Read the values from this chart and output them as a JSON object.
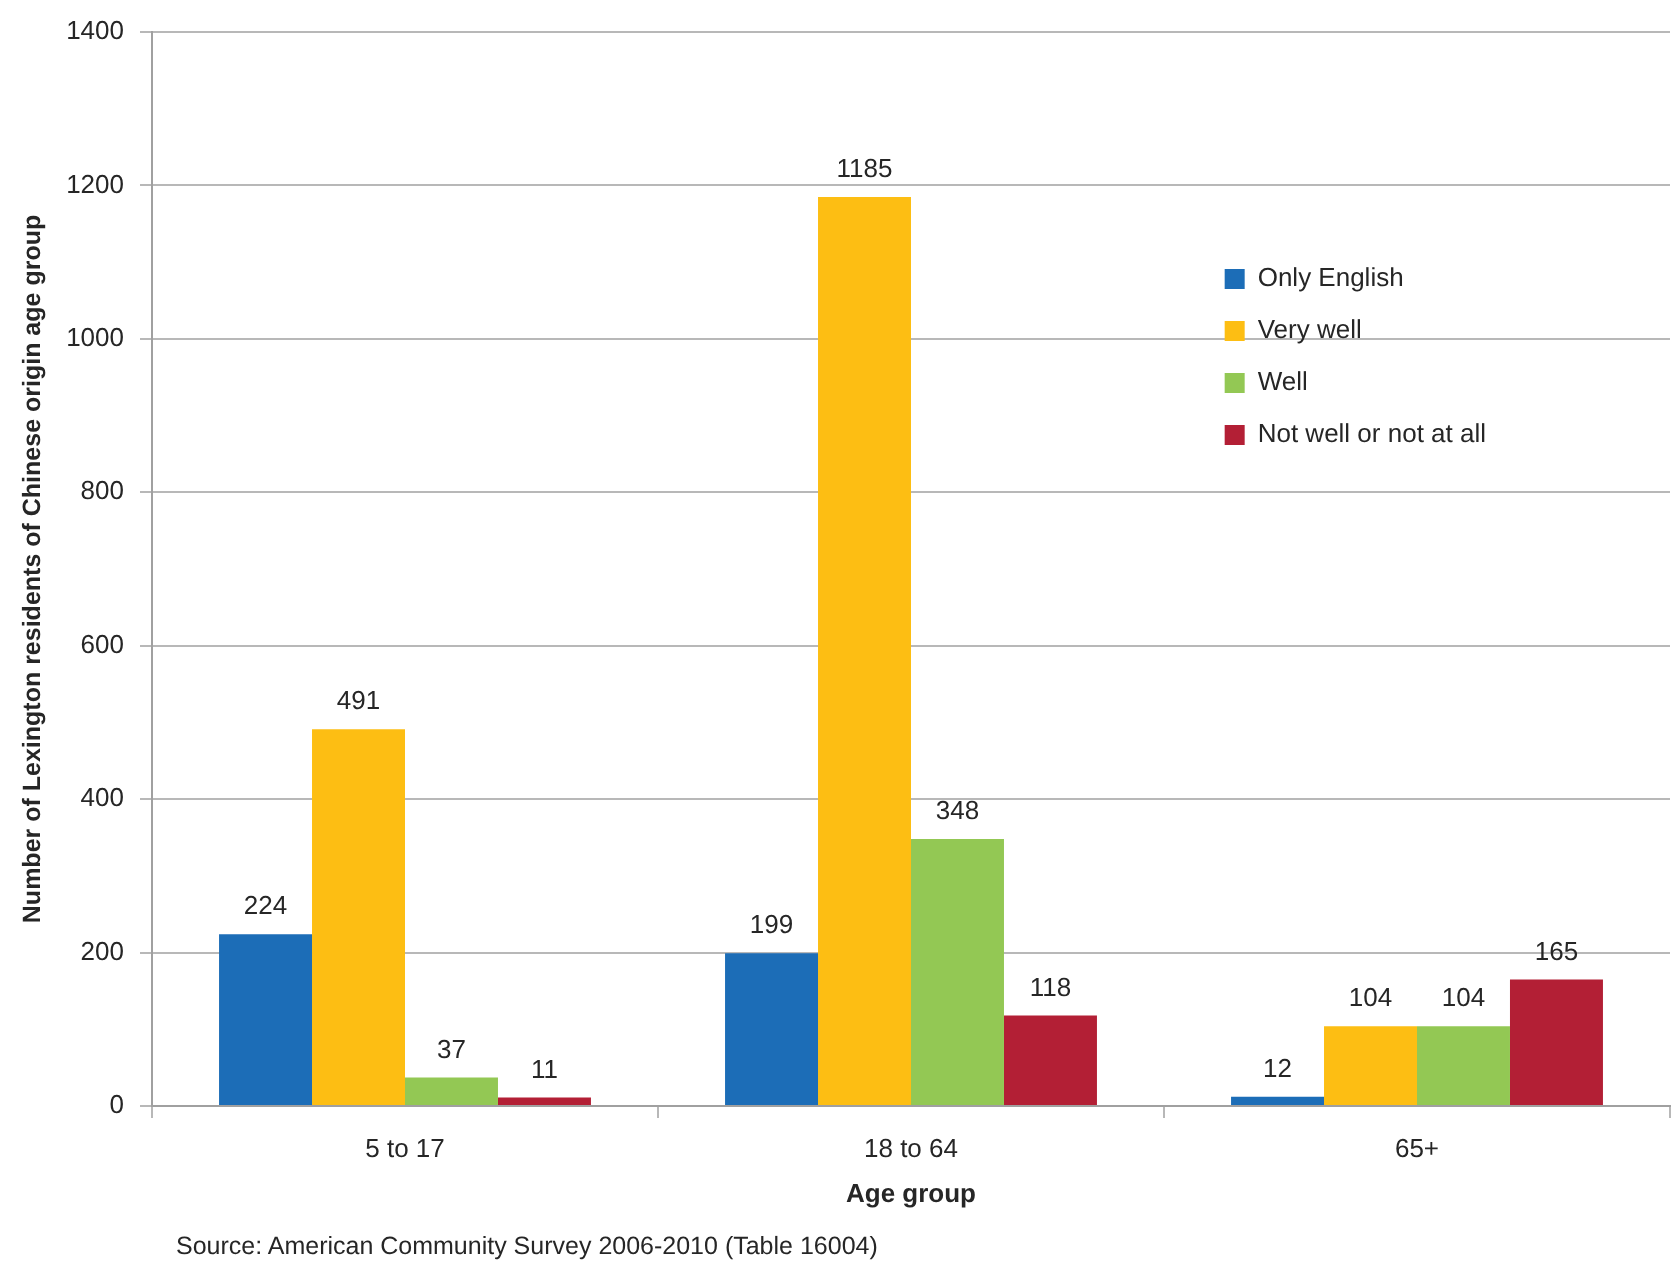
{
  "chart_data": {
    "type": "bar",
    "xlabel": "Age group",
    "ylabel": "Number of Lexington residents of Chinese origin age group",
    "categories": [
      "5 to 17",
      "18 to 64",
      "65+"
    ],
    "series": [
      {
        "name": "Only English",
        "color": "#1c6db7",
        "values": [
          224,
          199,
          12
        ]
      },
      {
        "name": "Very well",
        "color": "#fdbe13",
        "values": [
          491,
          1185,
          104
        ]
      },
      {
        "name": "Well",
        "color": "#93c854",
        "values": [
          37,
          348,
          104
        ]
      },
      {
        "name": "Not well or not at all",
        "color": "#b31f35",
        "values": [
          11,
          118,
          165
        ]
      }
    ],
    "ylim": [
      0,
      1400
    ],
    "yticks": [
      0,
      200,
      400,
      600,
      800,
      1000,
      1200,
      1400
    ],
    "grid": "y",
    "legend": "top right",
    "data_labels": true,
    "annotations": [
      "Source: American Community Survey 2006-2010 (Table 16004)"
    ]
  }
}
